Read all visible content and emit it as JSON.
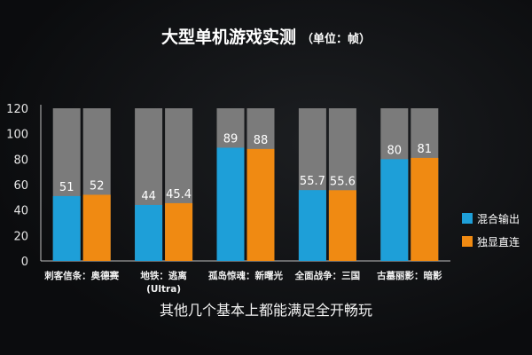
{
  "chart_data": {
    "type": "bar",
    "title": "大型单机游戏实测",
    "unit_note": "（单位：帧）",
    "categories": [
      "刺客信条：奥德赛",
      "地铁：逃离(Ultra)",
      "孤岛惊魂：新曙光",
      "全面战争：三国",
      "古墓丽影：暗影"
    ],
    "category_lines": [
      [
        "刺客信条：奥德赛"
      ],
      [
        "地铁：逃离",
        "(Ultra)"
      ],
      [
        "孤岛惊魂：新曙光"
      ],
      [
        "全面战争：三国"
      ],
      [
        "古墓丽影：暗影"
      ]
    ],
    "series": [
      {
        "name": "混合输出",
        "color": "#1e9fd8",
        "values": [
          51,
          44,
          89,
          55.7,
          80
        ],
        "labels": [
          "51",
          "44",
          "89",
          "55.7",
          "80"
        ]
      },
      {
        "name": "独显直连",
        "color": "#f08a12",
        "values": [
          52,
          45.4,
          88,
          55.6,
          81
        ],
        "labels": [
          "52",
          "45.4",
          "88",
          "55.6",
          "81"
        ]
      }
    ],
    "background_bar_color": "#7b7b7b",
    "ylim": [
      0,
      120
    ],
    "yticks": [
      "0",
      "20",
      "40",
      "60",
      "80",
      "100",
      "120"
    ],
    "legend_position": "right",
    "grid": false
  },
  "caption": "其他几个基本上都能满足全开畅玩"
}
